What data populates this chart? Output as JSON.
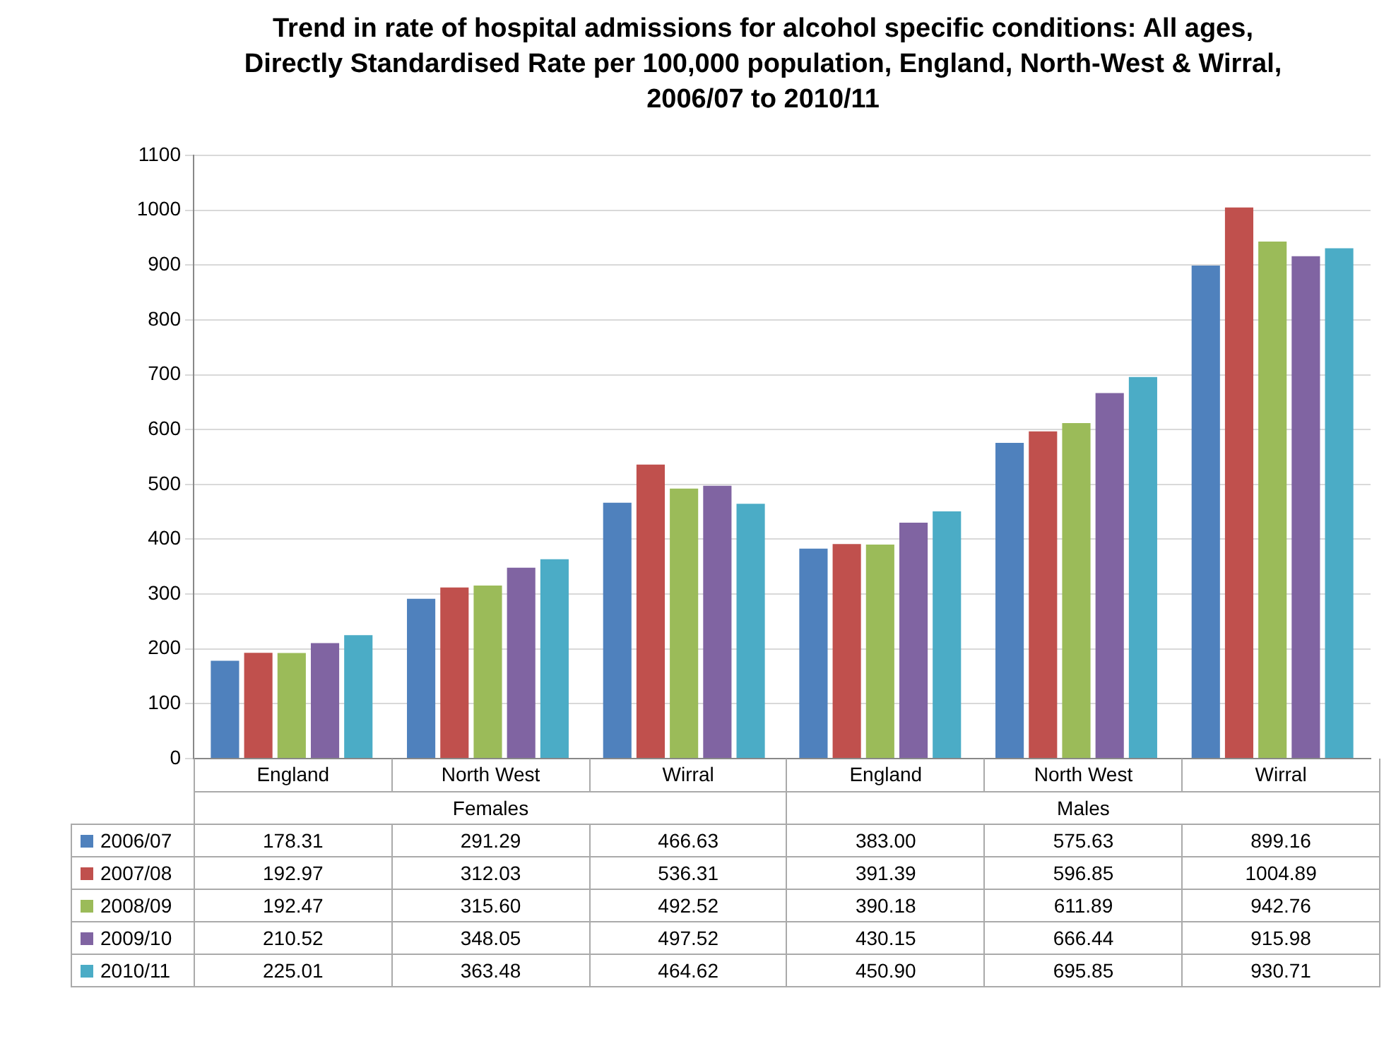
{
  "chart_data": {
    "type": "bar",
    "title": "Trend in rate of hospital admissions for alcohol specific conditions: All ages, Directly Standardised Rate  per 100,000 population, England, North-West & Wirral, 2006/07 to 2010/11",
    "categories": [
      "England",
      "North West",
      "Wirral",
      "England",
      "North West",
      "Wirral"
    ],
    "annotations": [
      "Females",
      "Males"
    ],
    "series": [
      {
        "name": "2006/07",
        "color": "#4f81bd",
        "values": [
          178.31,
          291.29,
          466.63,
          383.0,
          575.63,
          899.16
        ],
        "value_labels": [
          "178.31",
          "291.29",
          "466.63",
          "383.00",
          "575.63",
          "899.16"
        ]
      },
      {
        "name": "2007/08",
        "color": "#c0504d",
        "values": [
          192.97,
          312.03,
          536.31,
          391.39,
          596.85,
          1004.89
        ],
        "value_labels": [
          "192.97",
          "312.03",
          "536.31",
          "391.39",
          "596.85",
          "1004.89"
        ]
      },
      {
        "name": "2008/09",
        "color": "#9bbb59",
        "values": [
          192.47,
          315.6,
          492.52,
          390.18,
          611.89,
          942.76
        ],
        "value_labels": [
          "192.47",
          "315.60",
          "492.52",
          "390.18",
          "611.89",
          "942.76"
        ]
      },
      {
        "name": "2009/10",
        "color": "#8064a2",
        "values": [
          210.52,
          348.05,
          497.52,
          430.15,
          666.44,
          915.98
        ],
        "value_labels": [
          "210.52",
          "348.05",
          "497.52",
          "430.15",
          "666.44",
          "915.98"
        ]
      },
      {
        "name": "2010/11",
        "color": "#4bacc6",
        "values": [
          225.01,
          363.48,
          464.62,
          450.9,
          695.85,
          930.71
        ],
        "value_labels": [
          "225.01",
          "363.48",
          "464.62",
          "450.90",
          "695.85",
          "930.71"
        ]
      }
    ],
    "ylim": [
      0,
      1100
    ],
    "yticks": [
      0,
      100,
      200,
      300,
      400,
      500,
      600,
      700,
      800,
      900,
      1000,
      1100
    ],
    "grid": "y",
    "legend": "bottom"
  }
}
